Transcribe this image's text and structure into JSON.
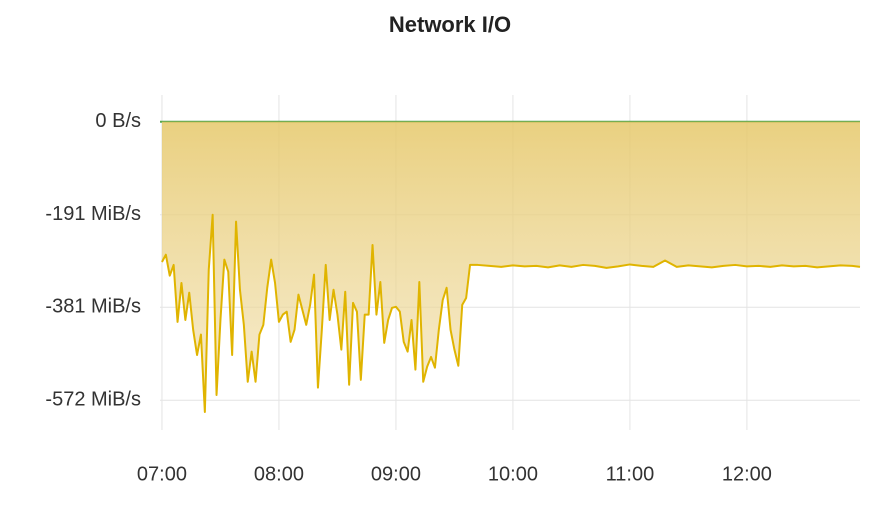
{
  "chart_data": {
    "type": "line",
    "title": "Network I/O",
    "xlim": [
      "06:59",
      "12:58"
    ],
    "xticks": [
      "07:00",
      "08:00",
      "09:00",
      "10:00",
      "11:00",
      "12:00"
    ],
    "ylim": [
      -633,
      55
    ],
    "yticks": [
      {
        "value": 0,
        "label": "0 B/s"
      },
      {
        "value": -191,
        "label": "-191 MiB/s"
      },
      {
        "value": -381,
        "label": "-381 MiB/s"
      },
      {
        "value": -572,
        "label": "-572 MiB/s"
      }
    ],
    "grid": true,
    "series": [
      {
        "color": "#56a64b",
        "x": [
          "06:59",
          "12:58"
        ],
        "values": [
          0,
          0
        ]
      },
      {
        "color": "#e0b400",
        "fill": true,
        "x": [
          "07:00",
          "07:02",
          "07:04",
          "07:06",
          "07:08",
          "07:10",
          "07:12",
          "07:14",
          "07:16",
          "07:18",
          "07:20",
          "07:22",
          "07:24",
          "07:26",
          "07:28",
          "07:30",
          "07:32",
          "07:34",
          "07:36",
          "07:38",
          "07:40",
          "07:42",
          "07:44",
          "07:46",
          "07:48",
          "07:50",
          "07:52",
          "07:54",
          "07:56",
          "07:58",
          "08:00",
          "08:02",
          "08:04",
          "08:06",
          "08:08",
          "08:10",
          "08:12",
          "08:14",
          "08:16",
          "08:18",
          "08:20",
          "08:22",
          "08:24",
          "08:26",
          "08:28",
          "08:30",
          "08:32",
          "08:34",
          "08:36",
          "08:38",
          "08:40",
          "08:42",
          "08:44",
          "08:46",
          "08:48",
          "08:50",
          "08:52",
          "08:54",
          "08:56",
          "08:58",
          "09:00",
          "09:02",
          "09:04",
          "09:06",
          "09:08",
          "09:10",
          "09:12",
          "09:14",
          "09:16",
          "09:18",
          "09:20",
          "09:22",
          "09:24",
          "09:26",
          "09:28",
          "09:30",
          "09:32",
          "09:34",
          "09:36",
          "09:38",
          "09:42",
          "09:48",
          "09:54",
          "10:00",
          "10:06",
          "10:12",
          "10:18",
          "10:24",
          "10:30",
          "10:36",
          "10:42",
          "10:48",
          "10:54",
          "11:00",
          "11:06",
          "11:12",
          "11:18",
          "11:24",
          "11:30",
          "11:36",
          "11:42",
          "11:48",
          "11:54",
          "12:00",
          "12:06",
          "12:12",
          "12:18",
          "12:24",
          "12:30",
          "12:36",
          "12:42",
          "12:48",
          "12:54",
          "12:58"
        ],
        "values": [
          -288,
          -273,
          -316,
          -294,
          -411,
          -331,
          -407,
          -351,
          -427,
          -479,
          -437,
          -596,
          -304,
          -191,
          -561,
          -407,
          -283,
          -308,
          -479,
          -205,
          -345,
          -417,
          -534,
          -472,
          -534,
          -437,
          -417,
          -341,
          -283,
          -331,
          -411,
          -396,
          -390,
          -452,
          -427,
          -355,
          -386,
          -417,
          -376,
          -314,
          -546,
          -427,
          -294,
          -407,
          -345,
          -396,
          -468,
          -349,
          -540,
          -372,
          -390,
          -530,
          -396,
          -396,
          -253,
          -396,
          -329,
          -454,
          -407,
          -382,
          -380,
          -390,
          -452,
          -472,
          -407,
          -509,
          -329,
          -534,
          -503,
          -483,
          -505,
          -427,
          -366,
          -341,
          -427,
          -468,
          -501,
          -376,
          -362,
          -294,
          -294,
          -296,
          -298,
          -295,
          -297,
          -296,
          -299,
          -295,
          -298,
          -294,
          -296,
          -300,
          -297,
          -293,
          -296,
          -298,
          -285,
          -298,
          -295,
          -297,
          -299,
          -296,
          -294,
          -297,
          -296,
          -298,
          -295,
          -297,
          -296,
          -299,
          -297,
          -295,
          -296,
          -298
        ]
      }
    ]
  }
}
